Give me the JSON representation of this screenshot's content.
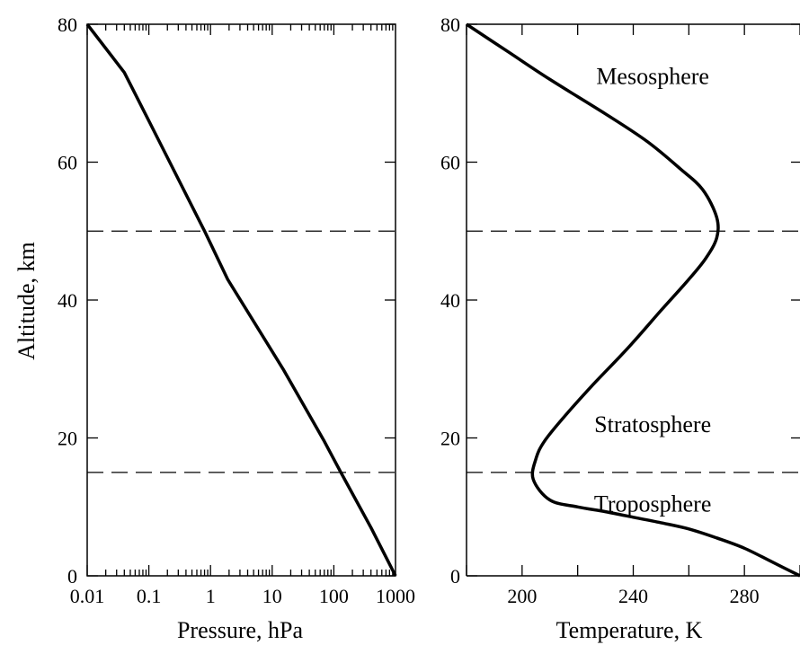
{
  "chart_data": [
    {
      "type": "line",
      "ylabel": "Altitude, km",
      "xlabel": "Pressure, hPa",
      "xscale": "log",
      "xlim": [
        0.01,
        1000
      ],
      "ylim": [
        0,
        80
      ],
      "x_tick_labels": [
        "0.01",
        "0.1",
        "1",
        "10",
        "100",
        "1000"
      ],
      "y_tick_labels": [
        "0",
        "20",
        "40",
        "60",
        "80"
      ],
      "series": [
        {
          "x": [
            1000,
            400,
            130,
            70,
            15,
            1.9,
            0.8,
            0.1,
            0.04,
            0.01
          ],
          "y": [
            0,
            7,
            15,
            19.5,
            30,
            43,
            50,
            66,
            73,
            80
          ]
        }
      ],
      "reference_lines_y": [
        15,
        50
      ],
      "grid": false
    },
    {
      "type": "line",
      "xlabel": "Temperature, K",
      "xlim": [
        180,
        300
      ],
      "ylim": [
        0,
        80
      ],
      "x_tick_labels": [
        "200",
        "240",
        "280"
      ],
      "y_tick_labels": [
        "0",
        "20",
        "40",
        "60",
        "80"
      ],
      "series": [
        {
          "x": [
            300,
            290,
            280,
            270,
            260,
            250,
            240,
            230,
            220,
            210,
            204,
            205,
            208,
            215,
            225,
            238,
            250,
            260,
            266,
            270,
            270,
            265,
            257,
            245,
            230,
            210,
            195,
            180
          ],
          "y": [
            0,
            2,
            4,
            5.5,
            6.8,
            7.7,
            8.5,
            9.3,
            10,
            11,
            14,
            17,
            19.5,
            23,
            27.5,
            33,
            38.5,
            43,
            46,
            49,
            52,
            56,
            59,
            63,
            67,
            72,
            76,
            80
          ]
        }
      ],
      "reference_lines_y": [
        15,
        50
      ],
      "annotations": [
        {
          "text": "Mesosphere",
          "x": 247,
          "y": 72.5
        },
        {
          "text": "Stratosphere",
          "x": 247,
          "y": 22
        },
        {
          "text": "Troposphere",
          "x": 247,
          "y": 10.5
        }
      ],
      "grid": false
    }
  ]
}
